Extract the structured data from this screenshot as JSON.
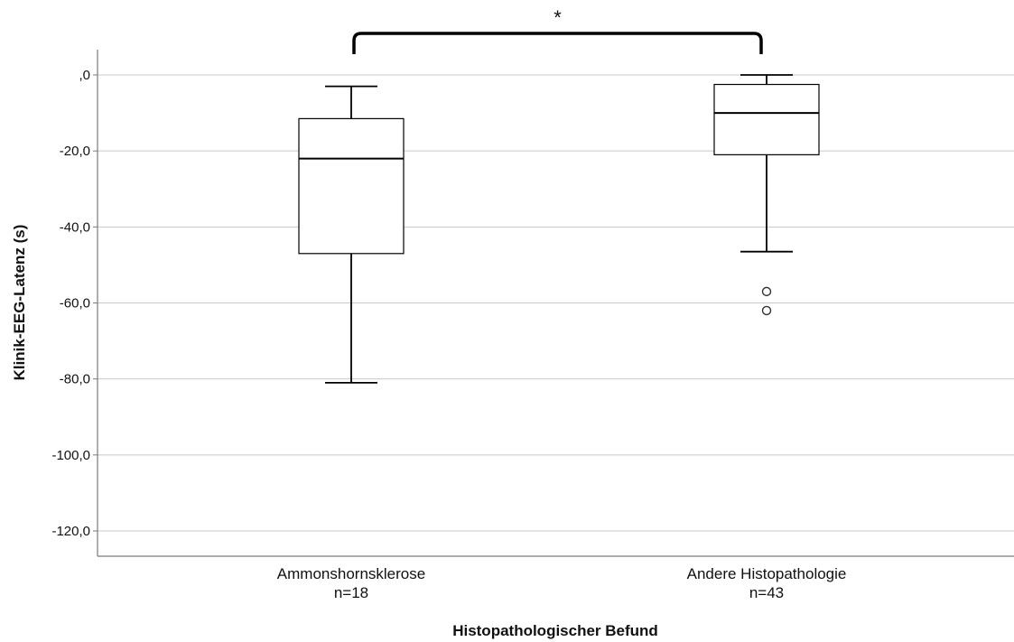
{
  "chart_data": {
    "type": "box",
    "title": "",
    "xlabel": "Histopathologischer Befund",
    "ylabel": "Klinik-EEG-Latenz (s)",
    "ylim": [
      -126,
      6
    ],
    "yticks": [
      0,
      -20,
      -40,
      -60,
      -80,
      -100,
      -120
    ],
    "ytick_labels": [
      ",0",
      "-20,0",
      "-40,0",
      "-60,0",
      "-80,0",
      "-100,0",
      "-120,0"
    ],
    "grid": true,
    "categories": [
      {
        "label": "Ammonshornsklerose",
        "n_label": "n=18",
        "whisker_low": -81,
        "q1": -47,
        "median": -22,
        "q3": -11.5,
        "whisker_high": -3,
        "outliers": []
      },
      {
        "label": "Andere Histopathologie",
        "n_label": "n=43",
        "whisker_low": -46.5,
        "q1": -21,
        "median": -10,
        "q3": -2.5,
        "whisker_high": 0,
        "outliers": [
          -57,
          -62
        ]
      }
    ],
    "significance": {
      "label": "*",
      "between": [
        0,
        1
      ]
    },
    "colors": {
      "box_fill": "#ffffff",
      "line": "#000000",
      "grid": "#c8c8c8",
      "axis": "#7a7a7a"
    }
  }
}
